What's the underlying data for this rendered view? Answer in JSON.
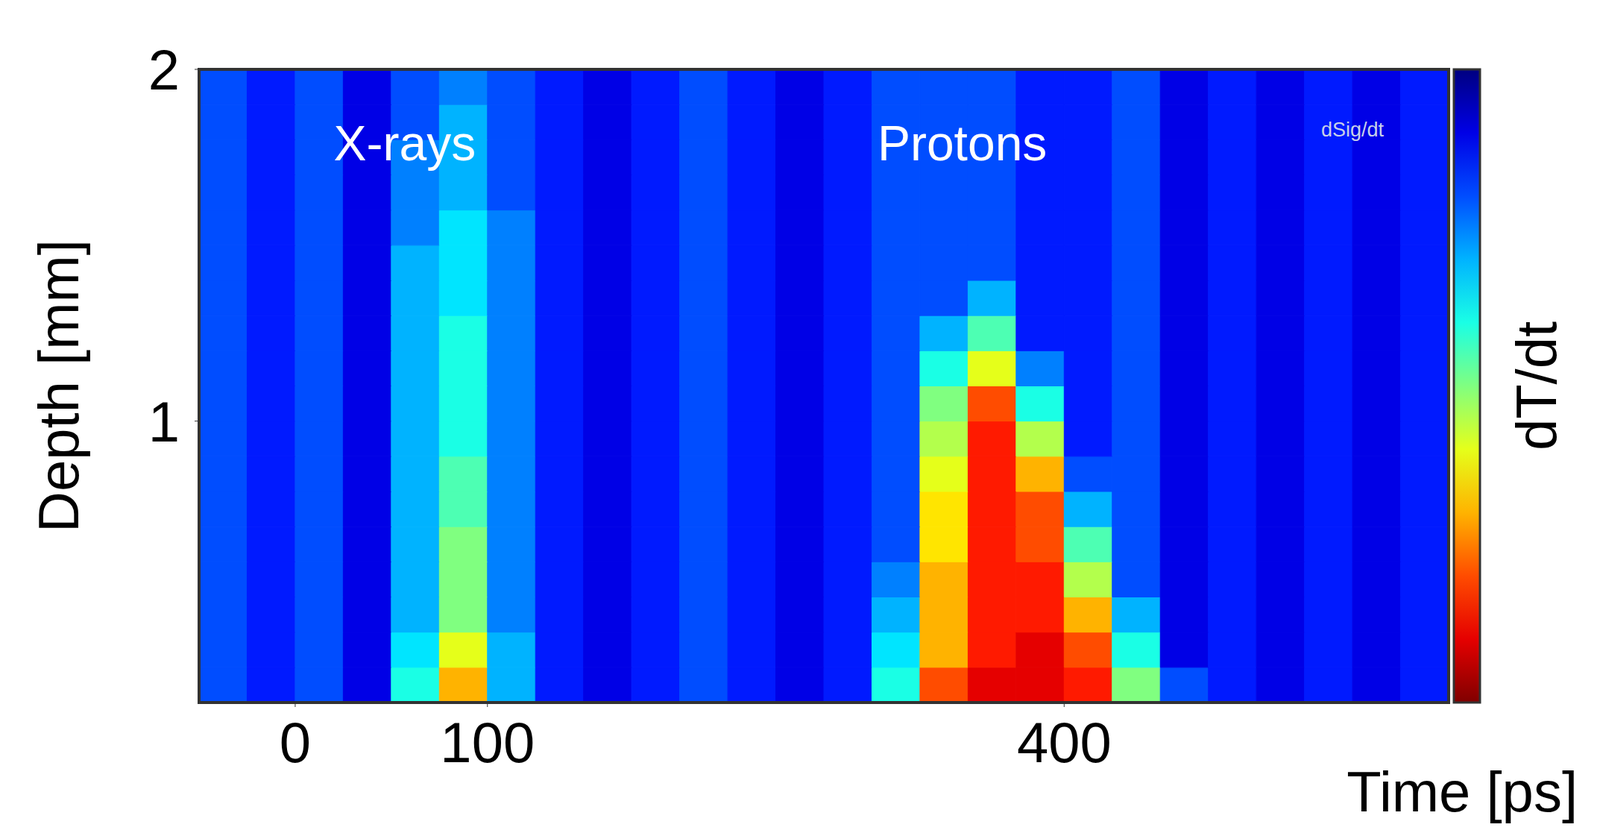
{
  "chart_data": {
    "type": "heatmap",
    "x_label": "Time [ps]",
    "y_label": "Depth [mm]",
    "xlim": [
      -50,
      600
    ],
    "ylim": [
      0.2,
      2
    ],
    "xticks": [
      0,
      100,
      400
    ],
    "yticks": [
      1,
      2
    ],
    "grid": false,
    "x_bins": [
      -50,
      -25,
      0,
      25,
      50,
      75,
      100,
      125,
      150,
      175,
      200,
      225,
      250,
      275,
      300,
      325,
      350,
      375,
      400,
      425,
      450,
      475,
      500,
      525,
      550,
      575,
      600
    ],
    "y_bins": [
      0.2,
      0.3,
      0.4,
      0.5,
      0.6,
      0.7,
      0.8,
      0.9,
      1.0,
      1.1,
      1.2,
      1.3,
      1.4,
      1.5,
      1.6,
      1.7,
      1.8,
      1.9,
      2.0
    ],
    "z": [
      [
        0.2,
        0.15,
        0.2,
        0.1,
        0.4,
        0.7,
        0.3,
        0.15,
        0.1,
        0.15,
        0.2,
        0.15,
        0.1,
        0.15,
        0.4,
        0.8,
        0.9,
        0.9,
        0.85,
        0.5,
        0.2,
        0.15,
        0.1,
        0.15,
        0.1,
        0.15
      ],
      [
        0.2,
        0.15,
        0.2,
        0.1,
        0.35,
        0.6,
        0.3,
        0.15,
        0.1,
        0.15,
        0.2,
        0.15,
        0.1,
        0.15,
        0.35,
        0.7,
        0.85,
        0.9,
        0.8,
        0.4,
        0.1,
        0.15,
        0.1,
        0.15,
        0.1,
        0.15
      ],
      [
        0.2,
        0.15,
        0.2,
        0.1,
        0.3,
        0.5,
        0.25,
        0.15,
        0.1,
        0.15,
        0.2,
        0.15,
        0.1,
        0.15,
        0.3,
        0.7,
        0.85,
        0.85,
        0.7,
        0.3,
        0.1,
        0.15,
        0.1,
        0.15,
        0.1,
        0.15
      ],
      [
        0.2,
        0.15,
        0.2,
        0.1,
        0.3,
        0.5,
        0.25,
        0.15,
        0.1,
        0.15,
        0.2,
        0.15,
        0.1,
        0.15,
        0.25,
        0.7,
        0.85,
        0.85,
        0.55,
        0.2,
        0.1,
        0.15,
        0.1,
        0.15,
        0.1,
        0.15
      ],
      [
        0.2,
        0.15,
        0.2,
        0.1,
        0.3,
        0.5,
        0.25,
        0.15,
        0.1,
        0.15,
        0.2,
        0.15,
        0.1,
        0.15,
        0.2,
        0.65,
        0.85,
        0.8,
        0.45,
        0.2,
        0.1,
        0.15,
        0.1,
        0.15,
        0.1,
        0.15
      ],
      [
        0.2,
        0.15,
        0.2,
        0.1,
        0.3,
        0.45,
        0.25,
        0.15,
        0.1,
        0.15,
        0.2,
        0.15,
        0.1,
        0.15,
        0.2,
        0.65,
        0.85,
        0.8,
        0.3,
        0.2,
        0.1,
        0.15,
        0.1,
        0.15,
        0.1,
        0.15
      ],
      [
        0.2,
        0.15,
        0.2,
        0.1,
        0.3,
        0.45,
        0.25,
        0.15,
        0.1,
        0.15,
        0.2,
        0.15,
        0.1,
        0.15,
        0.2,
        0.6,
        0.85,
        0.7,
        0.2,
        0.2,
        0.1,
        0.15,
        0.1,
        0.15,
        0.1,
        0.15
      ],
      [
        0.2,
        0.15,
        0.2,
        0.1,
        0.3,
        0.4,
        0.25,
        0.15,
        0.1,
        0.15,
        0.2,
        0.15,
        0.1,
        0.15,
        0.2,
        0.55,
        0.85,
        0.55,
        0.15,
        0.2,
        0.1,
        0.15,
        0.1,
        0.15,
        0.1,
        0.15
      ],
      [
        0.2,
        0.15,
        0.2,
        0.1,
        0.3,
        0.4,
        0.25,
        0.15,
        0.1,
        0.15,
        0.2,
        0.15,
        0.1,
        0.15,
        0.2,
        0.5,
        0.8,
        0.4,
        0.15,
        0.2,
        0.1,
        0.15,
        0.1,
        0.15,
        0.1,
        0.15
      ],
      [
        0.2,
        0.15,
        0.2,
        0.1,
        0.3,
        0.4,
        0.25,
        0.15,
        0.1,
        0.15,
        0.2,
        0.15,
        0.1,
        0.15,
        0.2,
        0.4,
        0.6,
        0.25,
        0.15,
        0.2,
        0.1,
        0.15,
        0.1,
        0.15,
        0.1,
        0.15
      ],
      [
        0.2,
        0.15,
        0.2,
        0.1,
        0.3,
        0.4,
        0.25,
        0.15,
        0.1,
        0.15,
        0.2,
        0.15,
        0.1,
        0.15,
        0.2,
        0.3,
        0.45,
        0.15,
        0.15,
        0.2,
        0.1,
        0.15,
        0.1,
        0.15,
        0.1,
        0.15
      ],
      [
        0.2,
        0.15,
        0.2,
        0.1,
        0.3,
        0.35,
        0.25,
        0.15,
        0.1,
        0.15,
        0.2,
        0.15,
        0.1,
        0.15,
        0.2,
        0.2,
        0.3,
        0.15,
        0.15,
        0.2,
        0.1,
        0.15,
        0.1,
        0.15,
        0.1,
        0.15
      ],
      [
        0.2,
        0.15,
        0.2,
        0.1,
        0.3,
        0.35,
        0.25,
        0.15,
        0.1,
        0.15,
        0.2,
        0.15,
        0.1,
        0.15,
        0.2,
        0.2,
        0.2,
        0.15,
        0.15,
        0.2,
        0.1,
        0.15,
        0.1,
        0.15,
        0.1,
        0.15
      ],
      [
        0.2,
        0.15,
        0.2,
        0.1,
        0.25,
        0.35,
        0.25,
        0.15,
        0.1,
        0.15,
        0.2,
        0.15,
        0.1,
        0.15,
        0.2,
        0.2,
        0.2,
        0.15,
        0.15,
        0.2,
        0.1,
        0.15,
        0.1,
        0.15,
        0.1,
        0.15
      ],
      [
        0.2,
        0.15,
        0.2,
        0.1,
        0.25,
        0.3,
        0.2,
        0.15,
        0.1,
        0.15,
        0.2,
        0.15,
        0.1,
        0.15,
        0.2,
        0.2,
        0.2,
        0.15,
        0.15,
        0.2,
        0.1,
        0.15,
        0.1,
        0.15,
        0.1,
        0.15
      ],
      [
        0.2,
        0.15,
        0.2,
        0.1,
        0.25,
        0.3,
        0.2,
        0.15,
        0.1,
        0.15,
        0.2,
        0.15,
        0.1,
        0.15,
        0.2,
        0.2,
        0.2,
        0.15,
        0.15,
        0.2,
        0.1,
        0.15,
        0.1,
        0.15,
        0.1,
        0.15
      ],
      [
        0.2,
        0.15,
        0.2,
        0.1,
        0.2,
        0.3,
        0.2,
        0.15,
        0.1,
        0.15,
        0.2,
        0.15,
        0.1,
        0.15,
        0.2,
        0.2,
        0.2,
        0.15,
        0.15,
        0.2,
        0.1,
        0.15,
        0.1,
        0.15,
        0.1,
        0.15
      ],
      [
        0.2,
        0.15,
        0.2,
        0.1,
        0.2,
        0.25,
        0.2,
        0.15,
        0.1,
        0.15,
        0.2,
        0.15,
        0.1,
        0.15,
        0.2,
        0.2,
        0.2,
        0.15,
        0.15,
        0.2,
        0.1,
        0.15,
        0.1,
        0.15,
        0.1,
        0.15
      ]
    ],
    "colorbar": {
      "label": "dT/dt",
      "range": [
        0,
        1
      ]
    },
    "annotations": [
      {
        "text": "X-rays",
        "x": 57,
        "y": 1.79
      },
      {
        "text": "Protons",
        "x": 347,
        "y": 1.79
      },
      {
        "text": "dSig/dt",
        "x": 550,
        "y": 1.83
      }
    ]
  }
}
